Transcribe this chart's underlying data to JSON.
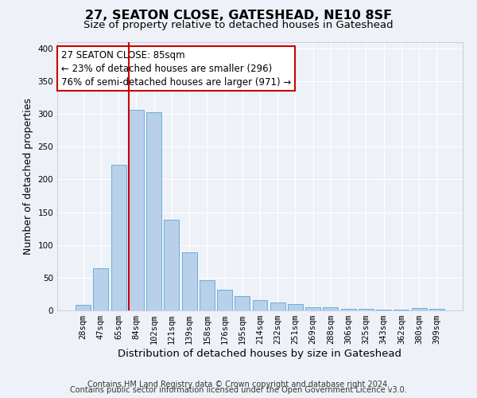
{
  "title": "27, SEATON CLOSE, GATESHEAD, NE10 8SF",
  "subtitle": "Size of property relative to detached houses in Gateshead",
  "xlabel": "Distribution of detached houses by size in Gateshead",
  "ylabel": "Number of detached properties",
  "footer_line1": "Contains HM Land Registry data © Crown copyright and database right 2024.",
  "footer_line2": "Contains public sector information licensed under the Open Government Licence v3.0.",
  "bar_labels": [
    "28sqm",
    "47sqm",
    "65sqm",
    "84sqm",
    "102sqm",
    "121sqm",
    "139sqm",
    "158sqm",
    "176sqm",
    "195sqm",
    "214sqm",
    "232sqm",
    "251sqm",
    "269sqm",
    "288sqm",
    "306sqm",
    "325sqm",
    "343sqm",
    "362sqm",
    "380sqm",
    "399sqm"
  ],
  "bar_values": [
    9,
    64,
    222,
    306,
    303,
    139,
    89,
    46,
    32,
    22,
    16,
    12,
    10,
    5,
    5,
    2,
    2,
    1,
    1,
    4,
    3
  ],
  "bar_color": "#b8d0ea",
  "bar_edge_color": "#6baed6",
  "background_color": "#eef2f8",
  "grid_color": "#ffffff",
  "vline_color": "#cc0000",
  "vline_x_index": 3,
  "ylim": [
    0,
    410
  ],
  "yticks": [
    0,
    50,
    100,
    150,
    200,
    250,
    300,
    350,
    400
  ],
  "annotation_text": "27 SEATON CLOSE: 85sqm\n← 23% of detached houses are smaller (296)\n76% of semi-detached houses are larger (971) →",
  "annotation_box_color": "#ffffff",
  "annotation_box_edge": "#cc0000",
  "title_fontsize": 11.5,
  "subtitle_fontsize": 9.5,
  "xlabel_fontsize": 9.5,
  "ylabel_fontsize": 9,
  "tick_fontsize": 7.5,
  "annotation_fontsize": 8.5,
  "footer_fontsize": 7
}
